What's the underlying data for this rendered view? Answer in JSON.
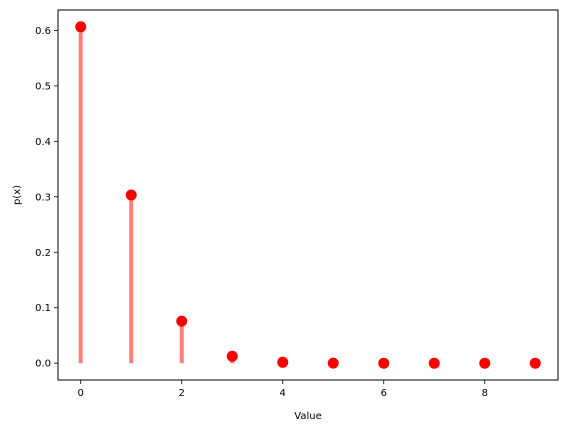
{
  "chart_data": {
    "type": "stem",
    "xlabel": "Value",
    "ylabel": "p(x)",
    "x": [
      0,
      1,
      2,
      3,
      4,
      5,
      6,
      7,
      8,
      9
    ],
    "values": [
      0.6065,
      0.3033,
      0.0758,
      0.0126,
      0.0016,
      0.0002,
      0.0,
      0.0,
      0.0,
      0.0
    ],
    "xlim": [
      -0.45,
      9.45
    ],
    "ylim": [
      -0.0303,
      0.6368
    ],
    "x_ticks": [
      0,
      2,
      4,
      6,
      8
    ],
    "y_ticks": [
      0.0,
      0.1,
      0.2,
      0.3,
      0.4,
      0.5,
      0.6
    ],
    "x_tick_labels": [
      "0",
      "2",
      "4",
      "6",
      "8"
    ],
    "y_tick_labels": [
      "0.0",
      "0.1",
      "0.2",
      "0.3",
      "0.4",
      "0.5",
      "0.6"
    ],
    "grid": false,
    "stem_color": "#ff7f7f",
    "marker_color": "#ff0000"
  }
}
